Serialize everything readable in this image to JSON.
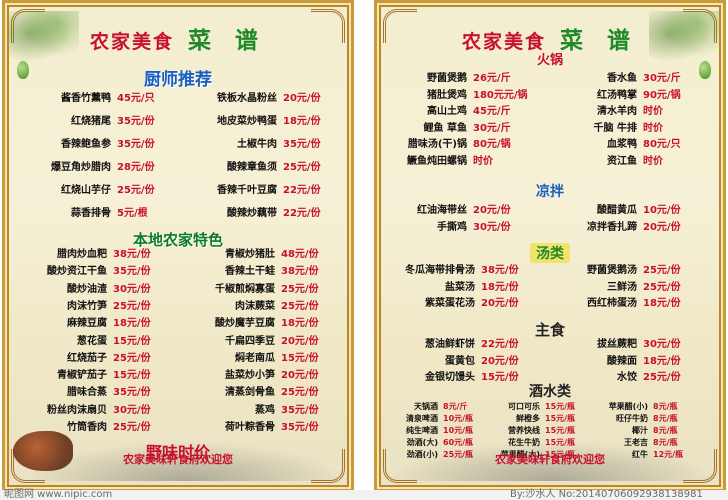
{
  "left": {
    "title_a": "农家美食",
    "title_b": "菜 谱",
    "sec_chef": "厨师推荐",
    "chef_left": [
      [
        "酱香竹薰鸭",
        "45元/只"
      ],
      [
        "红烧猪尾",
        "35元/份"
      ],
      [
        "香辣鲍鱼参",
        "35元/份"
      ],
      [
        "爆豆角炒腊肉",
        "28元/份"
      ],
      [
        "红烧山芋仔",
        "25元/份"
      ],
      [
        "蒜香排骨",
        "5元/根"
      ]
    ],
    "chef_right": [
      [
        "铁板水晶粉丝",
        "20元/份"
      ],
      [
        "地皮菜炒鸭蛋",
        "18元/份"
      ],
      [
        "土椒牛肉",
        "35元/份"
      ],
      [
        "酸辣章鱼须",
        "25元/份"
      ],
      [
        "香辣千叶豆腐",
        "22元/份"
      ],
      [
        "酸辣炒藕带",
        "22元/份"
      ]
    ],
    "sec_local": "本地农家特色",
    "local_left": [
      [
        "腊肉炒血粑",
        "38元/份"
      ],
      [
        "酸炒资江干鱼",
        "35元/份"
      ],
      [
        "酸炒油渣",
        "30元/份"
      ],
      [
        "肉沫竹笋",
        "25元/份"
      ],
      [
        "麻辣豆腐",
        "18元/份"
      ],
      [
        "葱花蛋",
        "15元/份"
      ],
      [
        "红烧茄子",
        "25元/份"
      ],
      [
        "青椒铲茄子",
        "15元/份"
      ],
      [
        "腊味合蒸",
        "35元/份"
      ],
      [
        "粉丝肉沫扇贝",
        "30元/份"
      ],
      [
        "竹筒香肉",
        "25元/份"
      ]
    ],
    "local_right": [
      [
        "青椒炒猪肚",
        "48元/份"
      ],
      [
        "香辣土干蛙",
        "38元/份"
      ],
      [
        "千椒煎焖寡蛋",
        "25元/份"
      ],
      [
        "肉沫蕨菜",
        "25元/份"
      ],
      [
        "酸炒魔芋豆腐",
        "18元/份"
      ],
      [
        "千扁四季豆",
        "20元/份"
      ],
      [
        "焖老南瓜",
        "15元/份"
      ],
      [
        "盐菜炒小笋",
        "20元/份"
      ],
      [
        "清蒸剑骨鱼",
        "25元/份"
      ],
      [
        "蒸鸡",
        "35元/份"
      ],
      [
        "荷叶粽香骨",
        "35元/份"
      ]
    ],
    "wild_price": "野味时价",
    "footer": "农家美味轩食府欢迎您"
  },
  "right": {
    "title_a": "农家美食",
    "title_b": "菜 谱",
    "sec_hotpot": "火锅",
    "hotpot_left": [
      [
        "野菌煲鹅",
        "26元/斤"
      ],
      [
        "猪肚煲鸡",
        "180元元/锅"
      ],
      [
        "高山土鸡",
        "45元/斤"
      ],
      [
        "鲤鱼 草鱼",
        "30元/斤"
      ],
      [
        "腊味汤(干)锅",
        "80元/锅"
      ],
      [
        "鳜鱼炖田螺锅",
        "时价"
      ]
    ],
    "hotpot_right": [
      [
        "香水鱼",
        "30元/斤"
      ],
      [
        "红汤鸭掌",
        "90元/锅"
      ],
      [
        "清水羊肉",
        "时价"
      ],
      [
        "千脑 牛排",
        "时价"
      ],
      [
        "血浆鸭",
        "80元/只"
      ],
      [
        "资江鱼",
        "时价"
      ]
    ],
    "sec_cold": "凉拌",
    "cold_left": [
      [
        "红油海带丝",
        "20元/份"
      ],
      [
        "手撕鸡",
        "30元/份"
      ]
    ],
    "cold_right": [
      [
        "酸醋黄瓜",
        "10元/份"
      ],
      [
        "凉拌香扎蹄",
        "20元/份"
      ]
    ],
    "sec_soup": "汤类",
    "soup_left": [
      [
        "冬瓜海带排骨汤",
        "38元/份"
      ],
      [
        "盐菜汤",
        "18元/份"
      ],
      [
        "紫菜蛋花汤",
        "20元/份"
      ]
    ],
    "soup_right": [
      [
        "野菌煲鹅汤",
        "25元/份"
      ],
      [
        "三鲜汤",
        "25元/份"
      ],
      [
        "西红柿蛋汤",
        "18元/份"
      ]
    ],
    "sec_staple": "主食",
    "staple_left": [
      [
        "葱油鲜虾饼",
        "22元/份"
      ],
      [
        "蛋黄包",
        "20元/份"
      ],
      [
        "金银切馒头",
        "15元/份"
      ]
    ],
    "staple_right": [
      [
        "拔丝蕨粑",
        "30元/份"
      ],
      [
        "酸辣面",
        "18元/份"
      ],
      [
        "水饺",
        "25元/份"
      ]
    ],
    "sec_drinks": "酒水类",
    "drinks": [
      [
        "天锅酒",
        "8元/斤",
        "可口可乐",
        "15元/瓶",
        "苹果醋(小)",
        "8元/瓶"
      ],
      [
        "清泉啤酒",
        "10元/瓶",
        "鲜橙多",
        "15元/瓶",
        "旺仔牛奶",
        "8元/瓶"
      ],
      [
        "纯生啤酒",
        "10元/瓶",
        "营养快线",
        "15元/瓶",
        "椰汁",
        "8元/瓶"
      ],
      [
        "劲酒(大)",
        "60元/瓶",
        "花生牛奶",
        "15元/瓶",
        "王老吉",
        "8元/瓶"
      ],
      [
        "劲酒(小)",
        "25元/瓶",
        "苹果醋(大)",
        "15元/瓶",
        "红牛",
        "12元/瓶"
      ]
    ],
    "footer": "农家美味轩食府欢迎您"
  },
  "watermark": {
    "left": "昵图网 www.nipic.com",
    "right": "By:沙水人 No:20140706092938138981"
  },
  "colors": {
    "price": "#c8102e",
    "title_green": "#1f8a2a",
    "section_blue": "#1b5fbf",
    "frame_gold": "#c89a3a"
  }
}
